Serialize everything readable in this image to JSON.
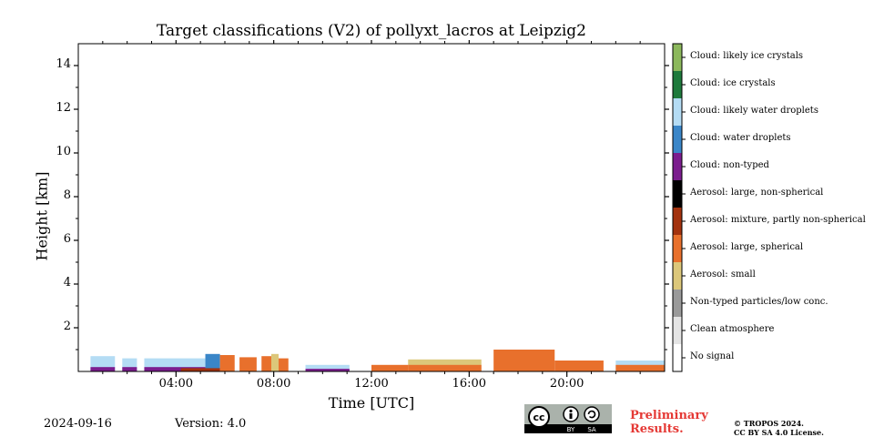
{
  "footer": {
    "date": "2024-09-16",
    "version": "Version: 4.0",
    "preliminary_line1": "Preliminary",
    "preliminary_line2": "Results.",
    "copyright_line1": "© TROPOS 2024.",
    "copyright_line2": "CC BY SA 4.0 License.",
    "license_badge_text": [
      "cc",
      "BY",
      "SA"
    ]
  },
  "chart_data": {
    "type": "heatmap",
    "title": "Target classifications (V2) of pollyxt_lacros at Leipzig2",
    "xlabel": "Time [UTC]",
    "ylabel": "Height [km]",
    "xlim": [
      0,
      24
    ],
    "ylim": [
      0,
      15
    ],
    "x_ticks": [
      4,
      8,
      12,
      16,
      20
    ],
    "x_tick_labels": [
      "04:00",
      "08:00",
      "12:00",
      "16:00",
      "20:00"
    ],
    "y_ticks": [
      2,
      4,
      6,
      8,
      10,
      12,
      14
    ],
    "y_tick_labels": [
      "2",
      "4",
      "6",
      "8",
      "10",
      "12",
      "14"
    ],
    "colorbar": [
      {
        "label": "No signal",
        "color": "#ffffff"
      },
      {
        "label": "Clean atmosphere",
        "color": "#e4e4e4"
      },
      {
        "label": "Non-typed particles/low conc.",
        "color": "#9a9a9a"
      },
      {
        "label": "Aerosol: small",
        "color": "#dcc77a"
      },
      {
        "label": "Aerosol: large, spherical",
        "color": "#e8702c"
      },
      {
        "label": "Aerosol: mixture, partly non-spherical",
        "color": "#a3320e"
      },
      {
        "label": "Aerosol: large, non-spherical",
        "color": "#000000"
      },
      {
        "label": "Cloud: non-typed",
        "color": "#7b1d8e"
      },
      {
        "label": "Cloud: water droplets",
        "color": "#3a86c8"
      },
      {
        "label": "Cloud: likely water droplets",
        "color": "#b4dcf4"
      },
      {
        "label": "Cloud: ice crystals",
        "color": "#1e7a3c"
      },
      {
        "label": "Cloud: likely ice crystals",
        "color": "#8cb85c"
      }
    ],
    "segments": [
      {
        "t_start": 0.5,
        "t_end": 1.5,
        "top_km": 0.7,
        "class": "Cloud: likely water droplets"
      },
      {
        "t_start": 0.5,
        "t_end": 1.5,
        "top_km": 0.2,
        "class": "Cloud: non-typed"
      },
      {
        "t_start": 1.8,
        "t_end": 2.4,
        "top_km": 0.6,
        "class": "Cloud: likely water droplets"
      },
      {
        "t_start": 1.8,
        "t_end": 2.4,
        "top_km": 0.2,
        "class": "Cloud: non-typed"
      },
      {
        "t_start": 2.7,
        "t_end": 5.2,
        "top_km": 0.6,
        "class": "Cloud: likely water droplets"
      },
      {
        "t_start": 2.7,
        "t_end": 5.2,
        "top_km": 0.2,
        "class": "Cloud: non-typed"
      },
      {
        "t_start": 4.2,
        "t_end": 5.8,
        "top_km": 0.15,
        "class": "Aerosol: mixture, partly non-spherical"
      },
      {
        "t_start": 5.2,
        "t_end": 5.8,
        "top_km": 0.8,
        "class": "Cloud: water droplets"
      },
      {
        "t_start": 5.8,
        "t_end": 6.4,
        "top_km": 0.75,
        "class": "Aerosol: large, spherical"
      },
      {
        "t_start": 6.6,
        "t_end": 7.3,
        "top_km": 0.65,
        "class": "Aerosol: large, spherical"
      },
      {
        "t_start": 7.5,
        "t_end": 7.9,
        "top_km": 0.7,
        "class": "Aerosol: large, spherical"
      },
      {
        "t_start": 7.9,
        "t_end": 8.2,
        "top_km": 0.8,
        "class": "Aerosol: small"
      },
      {
        "t_start": 8.2,
        "t_end": 8.6,
        "top_km": 0.6,
        "class": "Aerosol: large, spherical"
      },
      {
        "t_start": 9.3,
        "t_end": 11.1,
        "top_km": 0.3,
        "class": "Cloud: likely water droplets"
      },
      {
        "t_start": 9.3,
        "t_end": 11.1,
        "top_km": 0.12,
        "class": "Cloud: non-typed"
      },
      {
        "t_start": 12.0,
        "t_end": 13.5,
        "top_km": 0.3,
        "class": "Aerosol: large, spherical"
      },
      {
        "t_start": 13.5,
        "t_end": 16.5,
        "top_km": 0.55,
        "class": "Aerosol: small"
      },
      {
        "t_start": 13.5,
        "t_end": 16.5,
        "top_km": 0.3,
        "class": "Aerosol: large, spherical"
      },
      {
        "t_start": 17.0,
        "t_end": 19.5,
        "top_km": 1.0,
        "class": "Aerosol: large, spherical"
      },
      {
        "t_start": 19.5,
        "t_end": 21.5,
        "top_km": 0.5,
        "class": "Aerosol: large, spherical"
      },
      {
        "t_start": 22.0,
        "t_end": 24.0,
        "top_km": 0.3,
        "class": "Aerosol: large, spherical"
      },
      {
        "t_start": 22.0,
        "t_end": 24.0,
        "top_km": 0.5,
        "class": "Cloud: likely water droplets"
      }
    ]
  }
}
